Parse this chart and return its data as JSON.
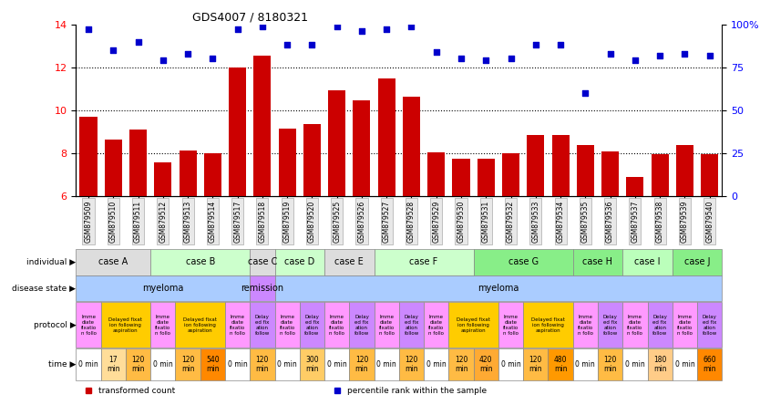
{
  "title": "GDS4007 / 8180321",
  "samples": [
    "GSM879509",
    "GSM879510",
    "GSM879511",
    "GSM879512",
    "GSM879513",
    "GSM879514",
    "GSM879517",
    "GSM879518",
    "GSM879519",
    "GSM879520",
    "GSM879525",
    "GSM879526",
    "GSM879527",
    "GSM879528",
    "GSM879529",
    "GSM879530",
    "GSM879531",
    "GSM879532",
    "GSM879533",
    "GSM879534",
    "GSM879535",
    "GSM879536",
    "GSM879537",
    "GSM879538",
    "GSM879539",
    "GSM879540"
  ],
  "bar_values": [
    9.7,
    8.65,
    9.1,
    7.6,
    8.15,
    8.0,
    12.0,
    12.55,
    9.15,
    9.35,
    10.95,
    10.45,
    11.5,
    10.65,
    8.05,
    7.75,
    7.75,
    8.0,
    8.85,
    8.85,
    8.4,
    8.1,
    6.9,
    7.95,
    8.4,
    7.95
  ],
  "scatter_values": [
    97,
    85,
    90,
    79,
    83,
    80,
    97,
    99,
    88,
    88,
    99,
    96,
    97,
    99,
    84,
    80,
    79,
    80,
    88,
    88,
    60,
    83,
    79,
    82,
    83,
    82
  ],
  "ylim_left": [
    6,
    14
  ],
  "ylim_right": [
    0,
    100
  ],
  "yticks_left": [
    6,
    8,
    10,
    12,
    14
  ],
  "yticks_right": [
    0,
    25,
    50,
    75,
    100
  ],
  "ytick_labels_right": [
    "0",
    "25",
    "50",
    "75",
    "100%"
  ],
  "bar_color": "#cc0000",
  "scatter_color": "#0000cc",
  "bar_width": 0.7,
  "individual_row": {
    "label": "individual",
    "cases": [
      {
        "name": "case A",
        "span": [
          0,
          3
        ],
        "color": "#dddddd"
      },
      {
        "name": "case B",
        "span": [
          3,
          7
        ],
        "color": "#ccffcc"
      },
      {
        "name": "case C",
        "span": [
          7,
          8
        ],
        "color": "#dddddd"
      },
      {
        "name": "case D",
        "span": [
          8,
          10
        ],
        "color": "#ccffcc"
      },
      {
        "name": "case E",
        "span": [
          10,
          12
        ],
        "color": "#dddddd"
      },
      {
        "name": "case F",
        "span": [
          12,
          16
        ],
        "color": "#ccffcc"
      },
      {
        "name": "case G",
        "span": [
          16,
          20
        ],
        "color": "#88ee88"
      },
      {
        "name": "case H",
        "span": [
          20,
          22
        ],
        "color": "#88ee88"
      },
      {
        "name": "case I",
        "span": [
          22,
          24
        ],
        "color": "#bbffbb"
      },
      {
        "name": "case J",
        "span": [
          24,
          26
        ],
        "color": "#88ee88"
      }
    ]
  },
  "disease_row": {
    "label": "disease state",
    "entries": [
      {
        "name": "myeloma",
        "span": [
          0,
          7
        ],
        "color": "#aaccff"
      },
      {
        "name": "remission",
        "span": [
          7,
          8
        ],
        "color": "#cc88ff"
      },
      {
        "name": "myeloma",
        "span": [
          8,
          26
        ],
        "color": "#aaccff"
      }
    ]
  },
  "protocol_row": {
    "label": "protocol",
    "entries": [
      {
        "name": "Imme\ndiate\nfixatio\nn follo",
        "span": [
          0,
          1
        ],
        "color": "#ff99ff"
      },
      {
        "name": "Delayed fixat\nion following\naspiration",
        "span": [
          1,
          3
        ],
        "color": "#ffcc00"
      },
      {
        "name": "Imme\ndiate\nfixatio\nn follo",
        "span": [
          3,
          4
        ],
        "color": "#ff99ff"
      },
      {
        "name": "Delayed fixat\nion following\naspiration",
        "span": [
          4,
          6
        ],
        "color": "#ffcc00"
      },
      {
        "name": "Imme\ndiate\nfixatio\nn follo",
        "span": [
          6,
          7
        ],
        "color": "#ff99ff"
      },
      {
        "name": "Delay\ned fix\nation\nfollow",
        "span": [
          7,
          8
        ],
        "color": "#cc88ff"
      },
      {
        "name": "Imme\ndiate\nfixatio\nn follo",
        "span": [
          8,
          9
        ],
        "color": "#ff99ff"
      },
      {
        "name": "Delay\ned fix\nation\nfollow",
        "span": [
          9,
          10
        ],
        "color": "#cc88ff"
      },
      {
        "name": "Imme\ndiate\nfixatio\nn follo",
        "span": [
          10,
          11
        ],
        "color": "#ff99ff"
      },
      {
        "name": "Delay\ned fix\nation\nfollow",
        "span": [
          11,
          12
        ],
        "color": "#cc88ff"
      },
      {
        "name": "Imme\ndiate\nfixatio\nn follo",
        "span": [
          12,
          13
        ],
        "color": "#ff99ff"
      },
      {
        "name": "Delay\ned fix\nation\nfollow",
        "span": [
          13,
          14
        ],
        "color": "#cc88ff"
      },
      {
        "name": "Imme\ndiate\nfixatio\nn follo",
        "span": [
          14,
          15
        ],
        "color": "#ff99ff"
      },
      {
        "name": "Delayed fixat\nion following\naspiration",
        "span": [
          15,
          17
        ],
        "color": "#ffcc00"
      },
      {
        "name": "Imme\ndiate\nfixatio\nn follo",
        "span": [
          17,
          18
        ],
        "color": "#ff99ff"
      },
      {
        "name": "Delayed fixat\nion following\naspiration",
        "span": [
          18,
          20
        ],
        "color": "#ffcc00"
      },
      {
        "name": "Imme\ndiate\nfixatio\nn follo",
        "span": [
          20,
          21
        ],
        "color": "#ff99ff"
      },
      {
        "name": "Delay\ned fix\nation\nfollow",
        "span": [
          21,
          22
        ],
        "color": "#cc88ff"
      },
      {
        "name": "Imme\ndiate\nfixatio\nn follo",
        "span": [
          22,
          23
        ],
        "color": "#ff99ff"
      },
      {
        "name": "Delay\ned fix\nation\nfollow",
        "span": [
          23,
          24
        ],
        "color": "#cc88ff"
      },
      {
        "name": "Imme\ndiate\nfixatio\nn follo",
        "span": [
          24,
          25
        ],
        "color": "#ff99ff"
      },
      {
        "name": "Delay\ned fix\nation\nfollow",
        "span": [
          25,
          26
        ],
        "color": "#cc88ff"
      }
    ]
  },
  "time_row": {
    "label": "time",
    "entries": [
      {
        "name": "0 min",
        "span": [
          0,
          1
        ],
        "color": "#ffffff"
      },
      {
        "name": "17\nmin",
        "span": [
          1,
          2
        ],
        "color": "#ffdd99"
      },
      {
        "name": "120\nmin",
        "span": [
          2,
          3
        ],
        "color": "#ffbb44"
      },
      {
        "name": "0 min",
        "span": [
          3,
          4
        ],
        "color": "#ffffff"
      },
      {
        "name": "120\nmin",
        "span": [
          4,
          5
        ],
        "color": "#ffbb44"
      },
      {
        "name": "540\nmin",
        "span": [
          5,
          6
        ],
        "color": "#ff8800"
      },
      {
        "name": "0 min",
        "span": [
          6,
          7
        ],
        "color": "#ffffff"
      },
      {
        "name": "120\nmin",
        "span": [
          7,
          8
        ],
        "color": "#ffbb44"
      },
      {
        "name": "0 min",
        "span": [
          8,
          9
        ],
        "color": "#ffffff"
      },
      {
        "name": "300\nmin",
        "span": [
          9,
          10
        ],
        "color": "#ffcc66"
      },
      {
        "name": "0 min",
        "span": [
          10,
          11
        ],
        "color": "#ffffff"
      },
      {
        "name": "120\nmin",
        "span": [
          11,
          12
        ],
        "color": "#ffbb44"
      },
      {
        "name": "0 min",
        "span": [
          12,
          13
        ],
        "color": "#ffffff"
      },
      {
        "name": "120\nmin",
        "span": [
          13,
          14
        ],
        "color": "#ffbb44"
      },
      {
        "name": "0 min",
        "span": [
          14,
          15
        ],
        "color": "#ffffff"
      },
      {
        "name": "120\nmin",
        "span": [
          15,
          16
        ],
        "color": "#ffbb44"
      },
      {
        "name": "420\nmin",
        "span": [
          16,
          17
        ],
        "color": "#ffaa33"
      },
      {
        "name": "0 min",
        "span": [
          17,
          18
        ],
        "color": "#ffffff"
      },
      {
        "name": "120\nmin",
        "span": [
          18,
          19
        ],
        "color": "#ffbb44"
      },
      {
        "name": "480\nmin",
        "span": [
          19,
          20
        ],
        "color": "#ff9900"
      },
      {
        "name": "0 min",
        "span": [
          20,
          21
        ],
        "color": "#ffffff"
      },
      {
        "name": "120\nmin",
        "span": [
          21,
          22
        ],
        "color": "#ffbb44"
      },
      {
        "name": "0 min",
        "span": [
          22,
          23
        ],
        "color": "#ffffff"
      },
      {
        "name": "180\nmin",
        "span": [
          23,
          24
        ],
        "color": "#ffcc88"
      },
      {
        "name": "0 min",
        "span": [
          24,
          25
        ],
        "color": "#ffffff"
      },
      {
        "name": "660\nmin",
        "span": [
          25,
          26
        ],
        "color": "#ff8800"
      }
    ]
  },
  "legend": [
    {
      "label": "transformed count",
      "color": "#cc0000",
      "marker": "s"
    },
    {
      "label": "percentile rank within the sample",
      "color": "#0000cc",
      "marker": "s"
    }
  ]
}
